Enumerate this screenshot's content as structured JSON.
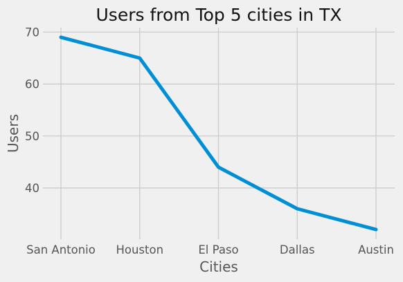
{
  "chart_data": {
    "type": "line",
    "title": "Users from Top 5 cities in TX",
    "xlabel": "Cities",
    "ylabel": "Users",
    "categories": [
      "San Antonio",
      "Houston",
      "El Paso",
      "Dallas",
      "Austin"
    ],
    "series": [
      {
        "values": [
          69,
          65,
          44,
          36,
          32
        ]
      }
    ],
    "yticks": [
      40,
      50,
      60,
      70
    ],
    "ylim": [
      30.15,
      70.85
    ],
    "grid": true,
    "colors": {
      "line": "#008fd5",
      "background": "#f0f0f0",
      "grid": "#cbcbcb",
      "text": "#555555"
    }
  }
}
